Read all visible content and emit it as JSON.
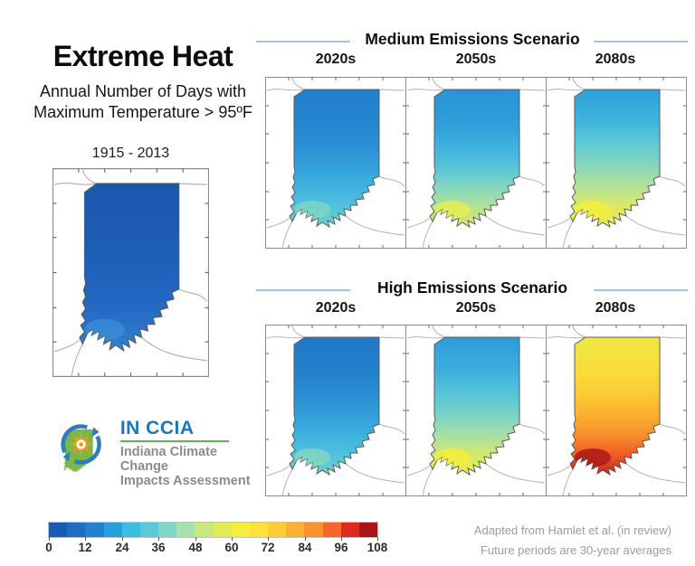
{
  "header": {
    "title": "Extreme Heat",
    "subtitle_line1": "Annual Number of Days with",
    "subtitle_line2": "Maximum Temperature > 95ºF"
  },
  "historical": {
    "label": "1915 - 2013"
  },
  "scenarios": [
    {
      "title": "Medium Emissions Scenario",
      "periods": [
        "2020s",
        "2050s",
        "2080s"
      ]
    },
    {
      "title": "High Emissions Scenario",
      "periods": [
        "2020s",
        "2050s",
        "2080s"
      ]
    }
  ],
  "maps": [
    {
      "id": "historical",
      "scenario": "Historical",
      "label": "1915 - 2013",
      "stops": [
        "#1c57ae",
        "#1d5ab2",
        "#1e5fb8",
        "#2063bd",
        "#2269c3",
        "#2973ca",
        "#3283d1"
      ],
      "accent": "#3b8fd6"
    },
    {
      "id": "medium-2020s",
      "scenario": "Medium Emissions",
      "label": "2020s",
      "stops": [
        "#2280cc",
        "#2585d0",
        "#2b90d6",
        "#35a2dc",
        "#41b3e0",
        "#53c3de",
        "#6cd0cc"
      ],
      "accent": "#83d6c2"
    },
    {
      "id": "medium-2050s",
      "scenario": "Medium Emissions",
      "label": "2050s",
      "stops": [
        "#2892d6",
        "#2f9eda",
        "#3fb1de",
        "#5ac6d8",
        "#86d7bb",
        "#b6e293",
        "#d9e966"
      ],
      "accent": "#e8ed4e"
    },
    {
      "id": "medium-2080s",
      "scenario": "Medium Emissions",
      "label": "2080s",
      "stops": [
        "#2da0d9",
        "#42b6de",
        "#65ccd2",
        "#8ed8b6",
        "#b9e294",
        "#dcea60",
        "#f2ee40"
      ],
      "accent": "#f6ef39"
    },
    {
      "id": "high-2020s",
      "scenario": "High Emissions",
      "label": "2020s",
      "stops": [
        "#1f78c8",
        "#2380cd",
        "#2a8dd4",
        "#34a0da",
        "#40b2df",
        "#51c3de",
        "#71d1c9"
      ],
      "accent": "#86d7c1"
    },
    {
      "id": "high-2050s",
      "scenario": "High Emissions",
      "label": "2050s",
      "stops": [
        "#2b9cd8",
        "#3dafde",
        "#58c6d8",
        "#7ed4c1",
        "#abdfa2",
        "#d3e96c",
        "#f0ed40"
      ],
      "accent": "#f6ee39"
    },
    {
      "id": "high-2080s",
      "scenario": "High Emissions",
      "label": "2080s",
      "stops": [
        "#efe742",
        "#f9dc39",
        "#fcc935",
        "#fbac31",
        "#f78c2c",
        "#ef5a24",
        "#c92119"
      ],
      "accent": "#a8151a"
    }
  ],
  "colorbar": {
    "tick_labels": [
      "0",
      "12",
      "24",
      "36",
      "48",
      "60",
      "72",
      "84",
      "96",
      "108"
    ],
    "segment_colors": [
      "#1a5cb3",
      "#1e6ec4",
      "#2183d0",
      "#28a0da",
      "#3cbde2",
      "#5ccad6",
      "#81d6c4",
      "#a8dfab",
      "#c8e77e",
      "#e2ec54",
      "#f4ee3d",
      "#fbe339",
      "#fdcd36",
      "#fcb132",
      "#f9932d",
      "#f3672a",
      "#dc2a1c",
      "#a8161a"
    ]
  },
  "logo": {
    "acronym": "IN CCIA",
    "line1": "Indiana Climate Change",
    "line2": "Impacts Assessment"
  },
  "footnotes": [
    "Adapted from Hamlet et al. (in review)",
    "Future periods are 30-year averages"
  ],
  "chart_data": {
    "type": "choropleth_small_multiples",
    "region": "Indiana",
    "variable": "Annual number of days with maximum temperature > 95ºF",
    "color_scale": {
      "min": 0,
      "max": 108,
      "tick_interval": 12,
      "segments": 18,
      "days_per_segment": 6
    },
    "legend_position": "bottom-left",
    "panels": [
      {
        "scenario": "Historical",
        "period": "1915 - 2013",
        "approx_days": {
          "north": 3,
          "central": 3,
          "south": 9
        }
      },
      {
        "scenario": "Medium Emissions",
        "period": "2020s",
        "approx_days": {
          "north": 12,
          "central": 15,
          "south": 27
        }
      },
      {
        "scenario": "Medium Emissions",
        "period": "2050s",
        "approx_days": {
          "north": 18,
          "central": 27,
          "south": 51
        }
      },
      {
        "scenario": "Medium Emissions",
        "period": "2080s",
        "approx_days": {
          "north": 21,
          "central": 39,
          "south": 63
        }
      },
      {
        "scenario": "High Emissions",
        "period": "2020s",
        "approx_days": {
          "north": 12,
          "central": 18,
          "south": 33
        }
      },
      {
        "scenario": "High Emissions",
        "period": "2050s",
        "approx_days": {
          "north": 21,
          "central": 36,
          "south": 60
        }
      },
      {
        "scenario": "High Emissions",
        "period": "2080s",
        "approx_days": {
          "north": 63,
          "central": 78,
          "south": 99
        }
      }
    ]
  }
}
